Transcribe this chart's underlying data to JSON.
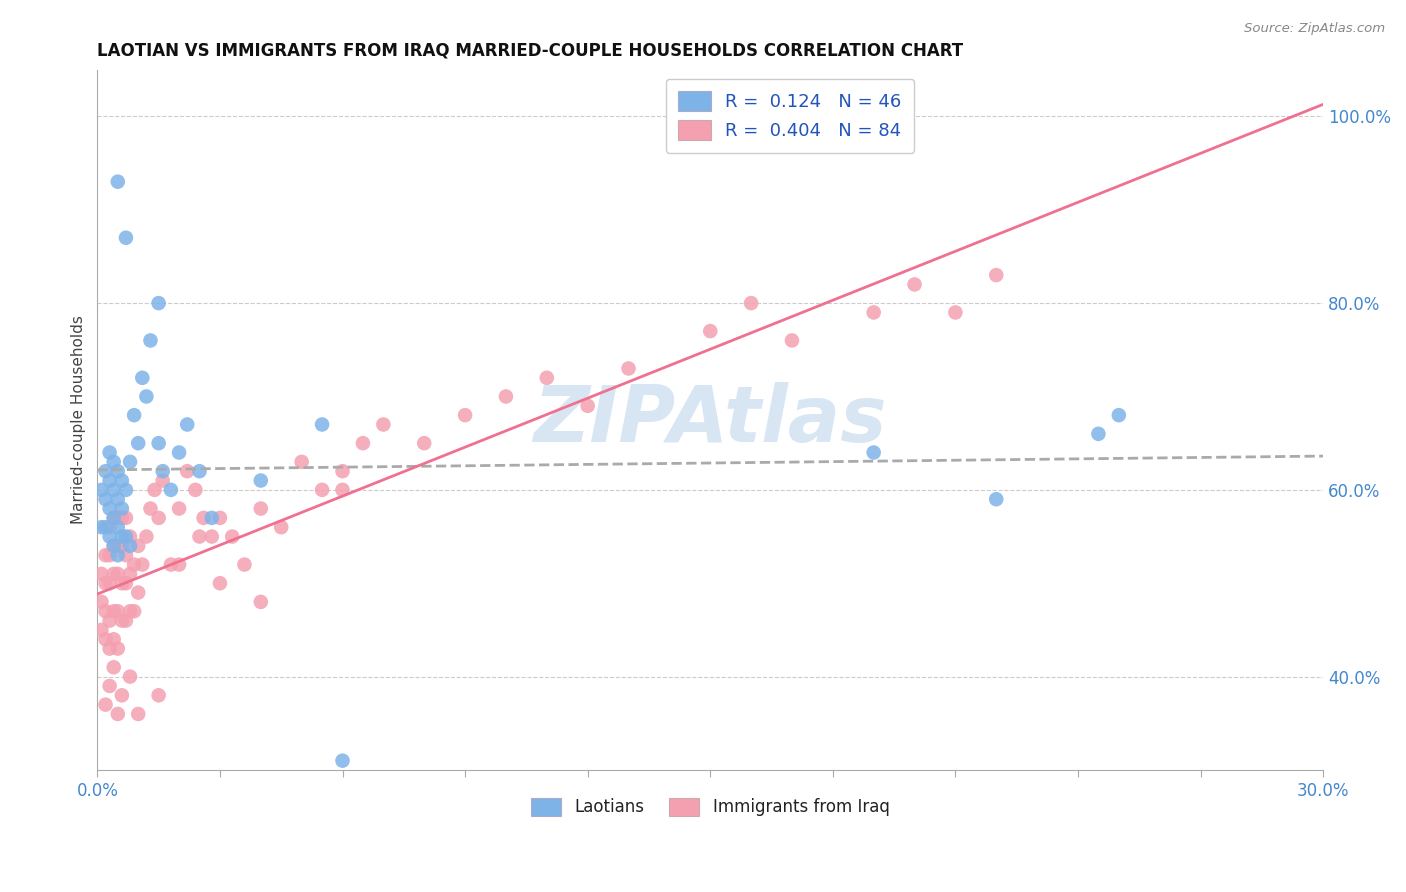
{
  "title": "LAOTIAN VS IMMIGRANTS FROM IRAQ MARRIED-COUPLE HOUSEHOLDS CORRELATION CHART",
  "source": "Source: ZipAtlas.com",
  "ylabel": "Married-couple Households",
  "yaxis_tick_vals": [
    0.4,
    0.6,
    0.8,
    1.0
  ],
  "color_laotian": "#7EB3E8",
  "color_iraq": "#F4A0B0",
  "color_line_laotian": "#AAAAAA",
  "color_line_iraq": "#F07090",
  "color_watermark": "#C8DCF0",
  "watermark_text": "ZIPAtlas",
  "background_color": "#FFFFFF",
  "xlim": [
    0.0,
    0.3
  ],
  "ylim": [
    0.3,
    1.05
  ],
  "laotian_x": [
    0.001,
    0.001,
    0.002,
    0.002,
    0.002,
    0.003,
    0.003,
    0.003,
    0.003,
    0.004,
    0.004,
    0.004,
    0.004,
    0.005,
    0.005,
    0.005,
    0.005,
    0.006,
    0.006,
    0.006,
    0.007,
    0.007,
    0.008,
    0.008,
    0.009,
    0.01,
    0.011,
    0.012,
    0.013,
    0.015,
    0.016,
    0.018,
    0.02,
    0.022,
    0.025,
    0.028,
    0.04,
    0.055,
    0.19,
    0.22,
    0.245,
    0.25,
    0.005,
    0.007,
    0.015,
    0.06
  ],
  "laotian_y": [
    0.56,
    0.6,
    0.56,
    0.59,
    0.62,
    0.55,
    0.58,
    0.61,
    0.64,
    0.54,
    0.57,
    0.6,
    0.63,
    0.53,
    0.56,
    0.59,
    0.62,
    0.55,
    0.58,
    0.61,
    0.55,
    0.6,
    0.54,
    0.63,
    0.68,
    0.65,
    0.72,
    0.7,
    0.76,
    0.65,
    0.62,
    0.6,
    0.64,
    0.67,
    0.62,
    0.57,
    0.61,
    0.67,
    0.64,
    0.59,
    0.66,
    0.68,
    0.93,
    0.87,
    0.8,
    0.31
  ],
  "iraq_x": [
    0.001,
    0.001,
    0.001,
    0.002,
    0.002,
    0.002,
    0.002,
    0.003,
    0.003,
    0.003,
    0.003,
    0.003,
    0.004,
    0.004,
    0.004,
    0.004,
    0.004,
    0.005,
    0.005,
    0.005,
    0.005,
    0.005,
    0.006,
    0.006,
    0.006,
    0.006,
    0.007,
    0.007,
    0.007,
    0.007,
    0.008,
    0.008,
    0.008,
    0.009,
    0.009,
    0.01,
    0.01,
    0.011,
    0.012,
    0.013,
    0.014,
    0.015,
    0.016,
    0.018,
    0.02,
    0.022,
    0.024,
    0.026,
    0.028,
    0.03,
    0.033,
    0.036,
    0.04,
    0.045,
    0.05,
    0.055,
    0.06,
    0.065,
    0.07,
    0.08,
    0.09,
    0.1,
    0.11,
    0.12,
    0.13,
    0.15,
    0.16,
    0.17,
    0.19,
    0.2,
    0.21,
    0.22,
    0.002,
    0.003,
    0.004,
    0.005,
    0.006,
    0.008,
    0.01,
    0.015,
    0.02,
    0.025,
    0.03,
    0.04,
    0.06
  ],
  "iraq_y": [
    0.48,
    0.51,
    0.45,
    0.47,
    0.5,
    0.53,
    0.44,
    0.46,
    0.5,
    0.53,
    0.56,
    0.43,
    0.47,
    0.51,
    0.54,
    0.57,
    0.44,
    0.47,
    0.51,
    0.54,
    0.57,
    0.43,
    0.46,
    0.5,
    0.54,
    0.57,
    0.46,
    0.5,
    0.53,
    0.57,
    0.47,
    0.51,
    0.55,
    0.47,
    0.52,
    0.49,
    0.54,
    0.52,
    0.55,
    0.58,
    0.6,
    0.57,
    0.61,
    0.52,
    0.58,
    0.62,
    0.6,
    0.57,
    0.55,
    0.57,
    0.55,
    0.52,
    0.58,
    0.56,
    0.63,
    0.6,
    0.62,
    0.65,
    0.67,
    0.65,
    0.68,
    0.7,
    0.72,
    0.69,
    0.73,
    0.77,
    0.8,
    0.76,
    0.79,
    0.82,
    0.79,
    0.83,
    0.37,
    0.39,
    0.41,
    0.36,
    0.38,
    0.4,
    0.36,
    0.38,
    0.52,
    0.55,
    0.5,
    0.48,
    0.6
  ]
}
